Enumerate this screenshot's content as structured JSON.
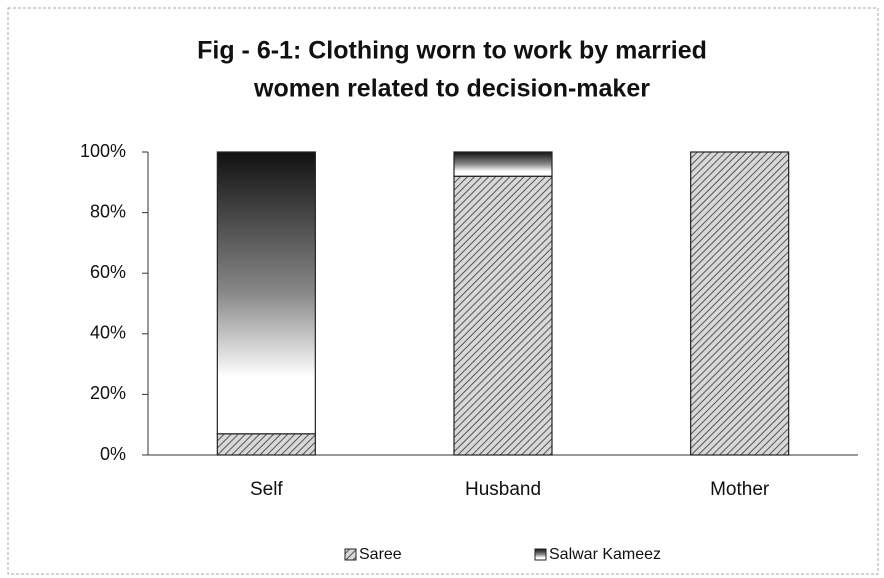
{
  "chart_data": {
    "type": "bar",
    "stacked": true,
    "title": [
      "Fig - 6-1: Clothing worn to work by married",
      "women related to decision-maker"
    ],
    "categories": [
      "Self",
      "Husband",
      "Mother"
    ],
    "series": [
      {
        "name": "Saree",
        "values": [
          7,
          92,
          100
        ]
      },
      {
        "name": "Salwar Kameez",
        "values": [
          93,
          8,
          0
        ]
      }
    ],
    "ylim": [
      0,
      100
    ],
    "yticks": [
      {
        "value": 0,
        "label": "0%"
      },
      {
        "value": 20,
        "label": "20%"
      },
      {
        "value": 40,
        "label": "40%"
      },
      {
        "value": 60,
        "label": "60%"
      },
      {
        "value": 80,
        "label": "80%"
      },
      {
        "value": 100,
        "label": "100%"
      }
    ],
    "legend": "bottom"
  }
}
